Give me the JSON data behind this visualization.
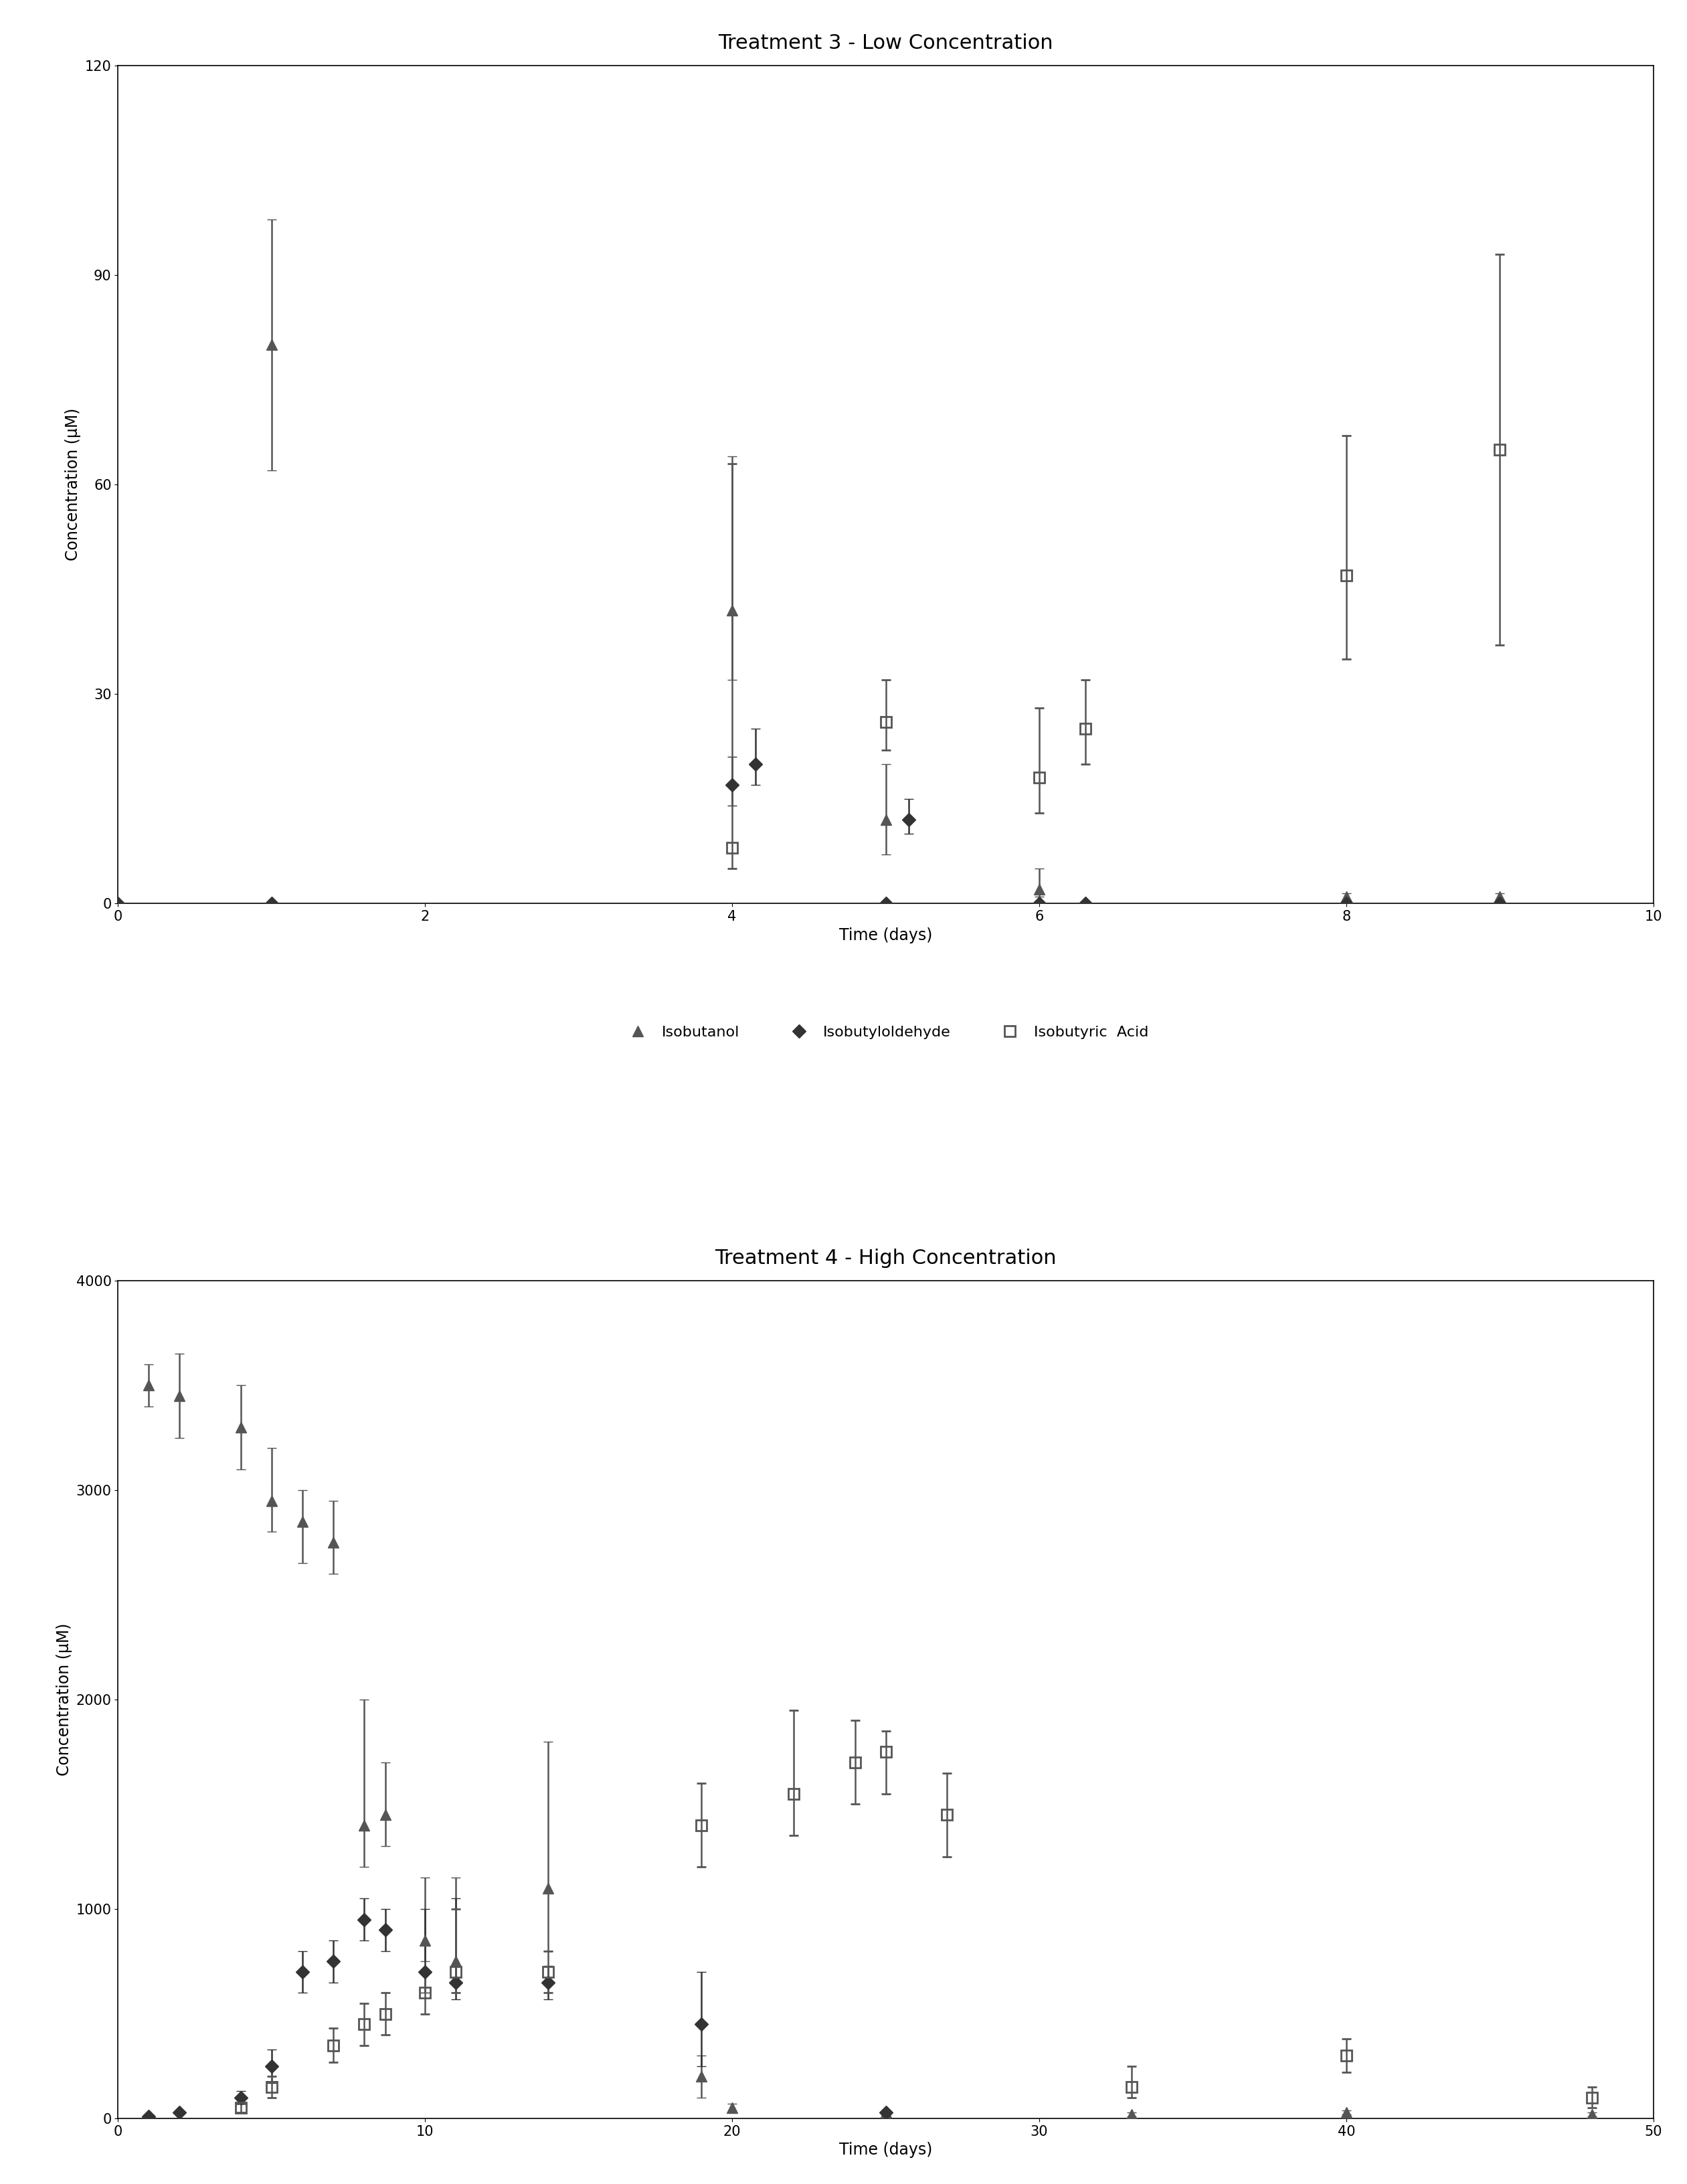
{
  "plot1": {
    "title": "Treatment 3 - Low Concentration",
    "xlabel": "Time (days)",
    "ylabel": "Concentration (μM)",
    "xlim": [
      0,
      10
    ],
    "ylim": [
      0,
      120
    ],
    "xticks": [
      0,
      2,
      4,
      6,
      8,
      10
    ],
    "yticks": [
      0,
      30,
      60,
      90,
      120
    ],
    "isobutanol": {
      "x": [
        1,
        4,
        5,
        6,
        8,
        9
      ],
      "y": [
        80,
        42,
        12,
        2,
        1,
        1
      ],
      "yelo": [
        18,
        10,
        5,
        1,
        0.5,
        0.5
      ],
      "yehi": [
        18,
        22,
        8,
        3,
        0.5,
        0.5
      ]
    },
    "isobutyraldehyde": {
      "x": [
        0,
        1,
        4,
        4.15,
        5,
        5.15,
        6,
        6.3,
        8,
        9
      ],
      "y": [
        0,
        0,
        17,
        20,
        0,
        12,
        0,
        0,
        0,
        0
      ],
      "yelo": [
        0,
        0,
        3,
        3,
        0,
        2,
        0,
        0,
        0,
        0
      ],
      "yehi": [
        0,
        0,
        4,
        5,
        0,
        3,
        0,
        0,
        0,
        0
      ]
    },
    "isobutyric_acid": {
      "x": [
        4,
        5,
        6,
        6.3,
        8,
        9
      ],
      "y": [
        8,
        26,
        18,
        25,
        47,
        65
      ],
      "yelo": [
        3,
        4,
        5,
        5,
        12,
        28
      ],
      "yehi": [
        55,
        6,
        10,
        7,
        20,
        28
      ]
    }
  },
  "plot2": {
    "title": "Treatment 4 - High Concentration",
    "xlabel": "Time (days)",
    "ylabel": "Concentration (μM)",
    "xlim": [
      0,
      50
    ],
    "ylim": [
      0,
      4000
    ],
    "xticks": [
      0,
      10,
      20,
      30,
      40,
      50
    ],
    "yticks": [
      0,
      1000,
      2000,
      3000,
      4000
    ],
    "isobutanol": {
      "x": [
        1,
        2,
        4,
        5,
        6,
        7,
        8,
        8.7,
        10,
        11,
        14,
        19,
        20,
        25,
        33,
        40,
        48
      ],
      "y": [
        3500,
        3450,
        3300,
        2950,
        2850,
        2750,
        1400,
        1450,
        850,
        750,
        1100,
        200,
        50,
        30,
        20,
        30,
        20
      ],
      "yelo": [
        100,
        200,
        200,
        150,
        200,
        150,
        200,
        150,
        100,
        80,
        300,
        100,
        20,
        10,
        10,
        10,
        10
      ],
      "yehi": [
        100,
        200,
        200,
        250,
        150,
        200,
        600,
        250,
        300,
        400,
        700,
        100,
        20,
        10,
        10,
        10,
        10
      ]
    },
    "isobutyraldehyde": {
      "x": [
        1,
        2,
        4,
        5,
        6,
        7,
        8,
        8.7,
        10,
        11,
        14,
        19,
        25
      ],
      "y": [
        10,
        30,
        100,
        250,
        700,
        750,
        950,
        900,
        700,
        650,
        650,
        450,
        30
      ],
      "yelo": [
        5,
        10,
        30,
        80,
        100,
        100,
        100,
        100,
        100,
        80,
        80,
        200,
        10
      ],
      "yehi": [
        5,
        10,
        30,
        80,
        100,
        100,
        100,
        100,
        300,
        400,
        80,
        250,
        10
      ]
    },
    "isobutyric_acid": {
      "x": [
        4,
        5,
        7,
        8,
        8.7,
        10,
        11,
        14,
        19,
        22,
        24,
        25,
        27,
        33,
        40,
        48
      ],
      "y": [
        50,
        150,
        350,
        450,
        500,
        600,
        700,
        700,
        1400,
        1550,
        1700,
        1750,
        1450,
        150,
        300,
        100
      ],
      "yelo": [
        20,
        50,
        80,
        100,
        100,
        100,
        100,
        100,
        200,
        200,
        200,
        200,
        200,
        50,
        80,
        50
      ],
      "yehi": [
        20,
        50,
        80,
        100,
        100,
        100,
        300,
        100,
        200,
        400,
        200,
        100,
        200,
        100,
        80,
        50
      ]
    }
  },
  "col_tri": "#555555",
  "col_dia": "#333333",
  "col_sq": "#555555",
  "bg": "#ffffff",
  "title_fs": 22,
  "label_fs": 17,
  "tick_fs": 15,
  "legend_fs": 16
}
